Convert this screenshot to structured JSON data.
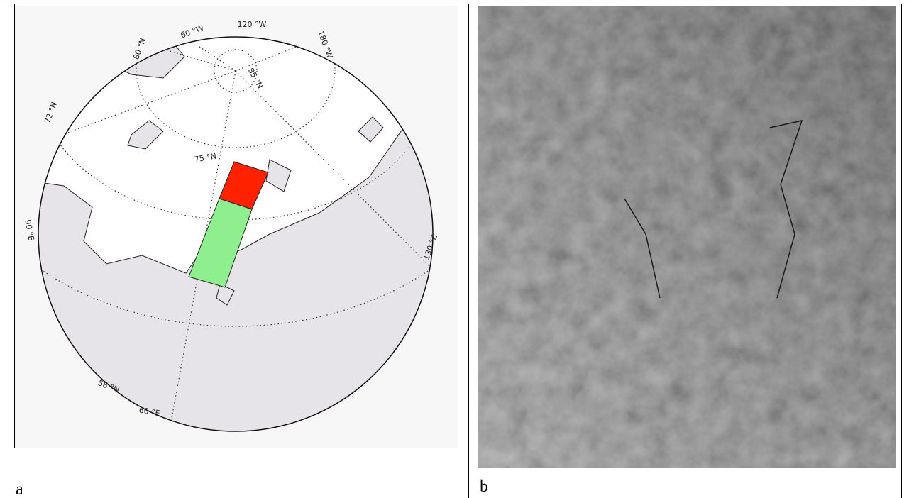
{
  "panels": [
    {
      "caption": "a",
      "map_labels": [
        "80 °N",
        "60 °W",
        "120 °W",
        "180 °W",
        "85 °N",
        "72 °N",
        "75 °N",
        "90 °E",
        "130 °E",
        "58 °N",
        "60 °E"
      ]
    },
    {
      "caption": "b"
    }
  ]
}
